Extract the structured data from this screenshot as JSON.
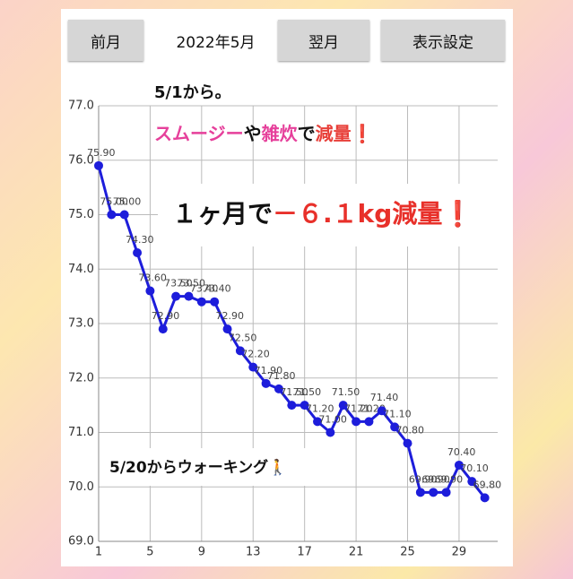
{
  "header": {
    "prev": "前月",
    "month": "2022年5月",
    "next": "翌月",
    "settings": "表示設定"
  },
  "chart_data": {
    "type": "line",
    "x": [
      1,
      2,
      3,
      4,
      5,
      6,
      7,
      8,
      9,
      10,
      11,
      12,
      13,
      14,
      15,
      16,
      17,
      18,
      19,
      20,
      21,
      22,
      23,
      24,
      25,
      26,
      27,
      28,
      29,
      30,
      31
    ],
    "series": [
      {
        "color": "#1d1ddb",
        "values": [
          75.9,
          75.0,
          75.0,
          74.3,
          73.6,
          72.9,
          73.5,
          73.5,
          73.4,
          73.4,
          72.9,
          72.5,
          72.2,
          71.9,
          71.8,
          71.5,
          71.5,
          71.2,
          71.0,
          71.5,
          71.2,
          71.2,
          71.4,
          71.1,
          70.8,
          69.9,
          69.9,
          69.9,
          70.4,
          70.1,
          69.8
        ],
        "value_labels": [
          "75.90",
          "75.00",
          "75.00",
          "74.30",
          "73.60",
          "72.90",
          "73.50",
          "73.50",
          "73.40",
          "73.40",
          "72.90",
          "72.50",
          "72.20",
          "71.90",
          "71.80",
          "71.50",
          "71.50",
          "71.20",
          "71.00",
          "71.50",
          "71.20",
          "71.20",
          "71.40",
          "71.10",
          "70.80",
          "69.90",
          "69.90",
          "69.90",
          "70.40",
          "70.10",
          "69.80"
        ]
      }
    ],
    "xlim": [
      1,
      32
    ],
    "xticks": [
      1,
      5,
      9,
      13,
      17,
      21,
      25,
      29
    ],
    "ylim": [
      69,
      77
    ],
    "yticks": [
      {
        "value": 69,
        "label": "69.0"
      },
      {
        "value": 70,
        "label": "70.0"
      },
      {
        "value": 71,
        "label": "71.0"
      },
      {
        "value": 72,
        "label": "72.0"
      },
      {
        "value": 73,
        "label": "73.0"
      },
      {
        "value": 74,
        "label": "74.0"
      },
      {
        "value": 75,
        "label": "75.0"
      },
      {
        "value": 76,
        "label": "76.0"
      },
      {
        "value": 77,
        "label": "77.0"
      }
    ],
    "grid": true,
    "annotations": [
      {
        "segments": [
          {
            "text": "5/1から。",
            "color": "#111111"
          }
        ]
      },
      {
        "segments": [
          {
            "text": "スムージー",
            "color": "#e6409b"
          },
          {
            "text": "や",
            "color": "#111111"
          },
          {
            "text": "雑炊",
            "color": "#e6409b"
          },
          {
            "text": "で",
            "color": "#111111"
          },
          {
            "text": "減量",
            "color": "#e8403a"
          },
          {
            "text": "❗",
            "color": "#e02020"
          }
        ]
      },
      {
        "segments": [
          {
            "text": "１ヶ月で",
            "color": "#111111"
          },
          {
            "text": "－６.１kg減量",
            "color": "#e8302a"
          },
          {
            "text": "❗",
            "color": "#e02020"
          }
        ]
      },
      {
        "segments": [
          {
            "text": "5/20からウォーキング🚶",
            "color": "#111111"
          }
        ]
      }
    ]
  }
}
